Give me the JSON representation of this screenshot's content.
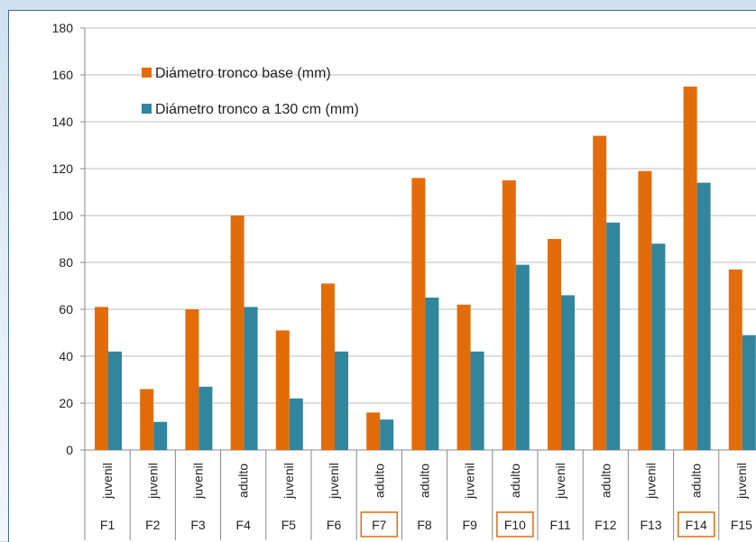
{
  "chart_data": {
    "type": "bar",
    "categories": [
      "F1",
      "F2",
      "F3",
      "F4",
      "F5",
      "F6",
      "F7",
      "F8",
      "F9",
      "F10",
      "F11",
      "F12",
      "F13",
      "F14",
      "F15"
    ],
    "stages": [
      "juvenil",
      "juvenil",
      "juvenil",
      "adulto",
      "juvenil",
      "juvenil",
      "adulto",
      "adulto",
      "juvenil",
      "adulto",
      "juvenil",
      "adulto",
      "juvenil",
      "adulto",
      "juvenil"
    ],
    "highlighted": [
      "F7",
      "F10",
      "F14"
    ],
    "series": [
      {
        "name": "Diámetro tronco base (mm)",
        "color": "#e36c0a",
        "values": [
          61,
          26,
          60,
          100,
          51,
          71,
          16,
          116,
          62,
          115,
          90,
          134,
          119,
          155,
          77
        ]
      },
      {
        "name": "Diámetro tronco a 130 cm (mm)",
        "color": "#31859c",
        "values": [
          42,
          12,
          27,
          61,
          22,
          42,
          13,
          65,
          42,
          79,
          66,
          97,
          88,
          114,
          49
        ]
      }
    ],
    "ylim": [
      0,
      180
    ],
    "yticks": [
      0,
      20,
      40,
      60,
      80,
      100,
      120,
      140,
      160,
      180
    ],
    "grid": true,
    "legend_position": "top-left",
    "highlight_color": "#e36c0a"
  }
}
